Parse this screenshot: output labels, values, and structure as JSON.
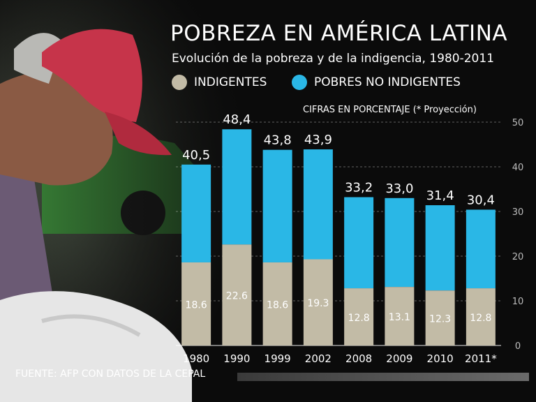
{
  "colors": {
    "indigentes": "#c2bba6",
    "pobres_no_indigentes": "#2ab7e6",
    "background": "#0b0b0b",
    "text": "#ffffff"
  },
  "header": {
    "title": "POBREZA EN AMÉRICA LATINA",
    "subtitle": "Evolución de la pobreza y de la indigencia, 1980-2011"
  },
  "legend": {
    "indigentes": "INDIGENTES",
    "pobres_no_indigentes": "POBRES NO INDIGENTES"
  },
  "unit_note": "CIFRAS EN PORCENTAJE (* Proyección)",
  "source": "FUENTE: AFP CON DATOS DE LA CEPAL",
  "chart_data": {
    "type": "bar",
    "stacked": true,
    "title": "POBREZA EN AMÉRICA LATINA",
    "subtitle": "Evolución de la pobreza y de la indigencia, 1980-2011",
    "ylabel": "CIFRAS EN PORCENTAJE (* Proyección)",
    "categories": [
      "1980",
      "1990",
      "1999",
      "2002",
      "2008",
      "2009",
      "2010",
      "2011*"
    ],
    "series": [
      {
        "name": "INDIGENTES",
        "values": [
          18.6,
          22.6,
          18.6,
          19.3,
          12.8,
          13.1,
          12.3,
          12.8
        ],
        "labels": [
          "18.6",
          "22.6",
          "18.6",
          "19.3",
          "12.8",
          "13.1",
          "12.3",
          "12.8"
        ]
      },
      {
        "name": "POBRES NO INDIGENTES",
        "values": [
          21.9,
          25.8,
          25.2,
          24.6,
          20.4,
          19.9,
          19.1,
          17.6
        ]
      }
    ],
    "totals": [
      40.5,
      48.4,
      43.8,
      43.9,
      33.2,
      33.0,
      31.4,
      30.4
    ],
    "total_labels": [
      "40,5",
      "48,4",
      "43,8",
      "43,9",
      "33,2",
      "33,0",
      "31,4",
      "30,4"
    ],
    "yticks": [
      "0",
      "10",
      "20",
      "30",
      "40",
      "50"
    ],
    "ylim": [
      0,
      50
    ],
    "grid": true,
    "axis_side": "right"
  }
}
